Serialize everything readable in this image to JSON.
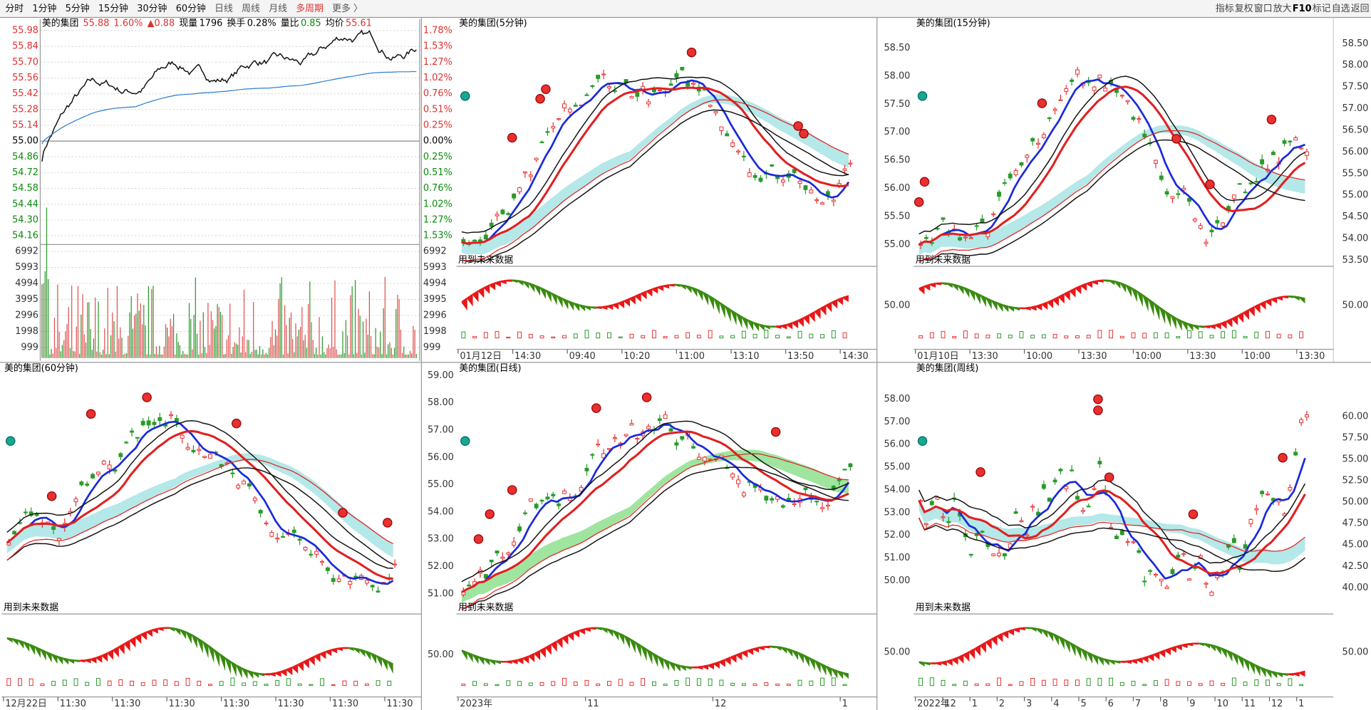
{
  "toolbar": {
    "periods": [
      "分时",
      "1分钟",
      "5分钟",
      "15分钟",
      "30分钟",
      "60分钟",
      "日线",
      "周线",
      "月线",
      "多周期",
      "更多 〉"
    ],
    "tools": [
      "指标",
      "复权",
      "窗口",
      "放大",
      "F10",
      "标记",
      "自选",
      "返回"
    ]
  },
  "intraday": {
    "header": [
      "美的集团",
      "55.88",
      "1.60%",
      "▲0.88",
      "现量",
      "1796",
      "换手",
      "0.28%",
      "量比",
      "0.85",
      "均价",
      "55.61"
    ],
    "price_ticks": [
      "55.98",
      "55.84",
      "55.70",
      "55.56",
      "55.42",
      "55.28",
      "55.14",
      "55.00",
      "54.86",
      "54.72",
      "54.58",
      "54.44",
      "54.30",
      "54.16"
    ],
    "pct_ticks": [
      "1.78%",
      "1.53%",
      "1.27%",
      "1.02%",
      "0.76%",
      "0.51%",
      "0.25%",
      "0.00%",
      "0.25%",
      "0.51%",
      "0.76%",
      "1.02%",
      "1.27%",
      "1.53%"
    ],
    "volume_ticks": [
      "6992",
      "5993",
      "4994",
      "3995",
      "2996",
      "1998",
      "999"
    ]
  },
  "panels": [
    {
      "title": "美的集团(5分钟)",
      "note": "用到未来数据",
      "ticks_left": [],
      "ticks_right": [],
      "indicator_ticks": [],
      "dates": [
        "01月12日",
        "14:30",
        "09:40",
        "10:20",
        "11:00",
        "13:10",
        "13:50",
        "14:30"
      ]
    },
    {
      "title": "美的集团(15分钟)",
      "note": "用到未来数据",
      "ticks_left": [
        "58.50",
        "58.00",
        "57.50",
        "57.00",
        "56.50",
        "56.00",
        "55.50",
        "55.00"
      ],
      "ticks_right": [
        "58.50",
        "58.00",
        "57.50",
        "57.00",
        "56.50",
        "56.00",
        "55.50",
        "55.00",
        "54.50",
        "54.00",
        "53.50"
      ],
      "indicator_ticks": [
        "50.00"
      ],
      "dates": [
        "01月10日",
        "13:30",
        "10:00",
        "13:30",
        "10:00",
        "13:30",
        "10:00",
        "13:30"
      ]
    },
    {
      "title": "美的集团(60分钟)",
      "note": "用到未来数据",
      "ticks_left": [],
      "ticks_right": [],
      "indicator_ticks": [],
      "dates": [
        "12月22日",
        "11:30",
        "11:30",
        "11:30",
        "11:30",
        "11:30",
        "11:30",
        "11:30"
      ]
    },
    {
      "title": "美的集团(日线)",
      "note": "用到未来数据",
      "ticks_left": [
        "59.00",
        "58.00",
        "57.00",
        "56.00",
        "55.00",
        "54.00",
        "53.00",
        "52.00",
        "51.00"
      ],
      "ticks_right": [],
      "indicator_ticks": [
        "50.00"
      ],
      "dates": [
        "2023年",
        "11",
        "12",
        "1"
      ]
    },
    {
      "title": "美的集团(周线)",
      "note": "用到未来数据",
      "ticks_left": [
        "58.00",
        "57.00",
        "56.00",
        "55.00",
        "54.00",
        "53.00",
        "52.00",
        "51.00",
        "50.00"
      ],
      "ticks_right": [
        "60.00",
        "57.50",
        "55.00",
        "52.50",
        "50.00",
        "47.50",
        "45.00",
        "42.50",
        "40.00"
      ],
      "indicator_ticks": [
        "50.00"
      ],
      "dates": [
        "2022年",
        "12",
        "1",
        "2",
        "3",
        "4",
        "5",
        "6",
        "7",
        "8",
        "9",
        "10",
        "11",
        "12",
        "1"
      ]
    }
  ]
}
